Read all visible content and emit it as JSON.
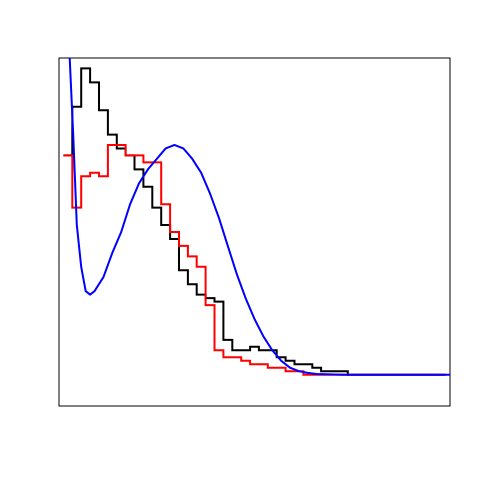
{
  "chart_data": {
    "type": "line",
    "title": "",
    "xlabel": "",
    "ylabel": "",
    "xlim": [
      0,
      44
    ],
    "ylim": [
      0,
      100
    ],
    "grid": false,
    "axes_drawn": false,
    "series": [
      {
        "style": "step",
        "color": "#000000",
        "x": [
          1,
          2,
          3,
          4,
          5,
          6,
          7,
          8,
          9,
          10,
          11,
          12,
          13,
          14,
          15,
          16,
          17,
          18,
          19,
          20,
          21,
          22,
          23,
          24,
          25,
          26,
          27,
          28,
          29,
          30,
          31,
          32,
          33,
          34,
          35,
          36,
          37,
          38,
          39,
          40,
          41,
          42,
          43
        ],
        "values": [
          72,
          86,
          97,
          93,
          85,
          78,
          74,
          72,
          68,
          63,
          57,
          52,
          48,
          39,
          35,
          32,
          31,
          30,
          19,
          16,
          16,
          17,
          16,
          16,
          14,
          13,
          12,
          12,
          11,
          10,
          10,
          10,
          9,
          9,
          9,
          9,
          9,
          9,
          9,
          9,
          9,
          9,
          9
        ]
      },
      {
        "style": "step",
        "color": "#ff0000",
        "x": [
          1,
          2,
          3,
          4,
          5,
          6,
          7,
          8,
          9,
          10,
          11,
          12,
          13,
          14,
          15,
          16,
          17,
          18,
          19,
          20,
          21,
          22,
          23,
          24,
          25,
          26,
          27,
          28,
          29,
          30,
          31,
          32,
          33,
          34,
          35,
          36,
          37,
          38,
          39,
          40,
          41,
          42,
          43
        ],
        "values": [
          72,
          57,
          66,
          67,
          66,
          75,
          75,
          72,
          72,
          70,
          70,
          58,
          50,
          46,
          43,
          40,
          29,
          16,
          14,
          14,
          13,
          12,
          12,
          11,
          11,
          10,
          10,
          9,
          9,
          9,
          9,
          9,
          9,
          9,
          9,
          9,
          9,
          9,
          9,
          9,
          9,
          9,
          9
        ]
      },
      {
        "style": "smooth",
        "color": "#0000ff",
        "x": [
          1.2,
          1.6,
          2,
          2.5,
          3,
          3.5,
          4,
          5,
          6,
          7,
          8,
          9,
          10,
          11,
          12,
          13,
          14,
          15,
          16,
          17,
          18,
          19,
          20,
          21,
          22,
          23,
          24,
          25,
          26,
          27,
          28,
          29,
          30,
          32,
          34,
          36,
          38,
          40,
          42,
          44
        ],
        "values": [
          100,
          78,
          52,
          40,
          33,
          32,
          33,
          37,
          44,
          50,
          58,
          64,
          68,
          71,
          74,
          75,
          74,
          71,
          67,
          61,
          54,
          46,
          38,
          31,
          25,
          20,
          16,
          13,
          11,
          10,
          9.5,
          9.2,
          9.1,
          9,
          9,
          9,
          9,
          9,
          9,
          9
        ]
      }
    ]
  }
}
